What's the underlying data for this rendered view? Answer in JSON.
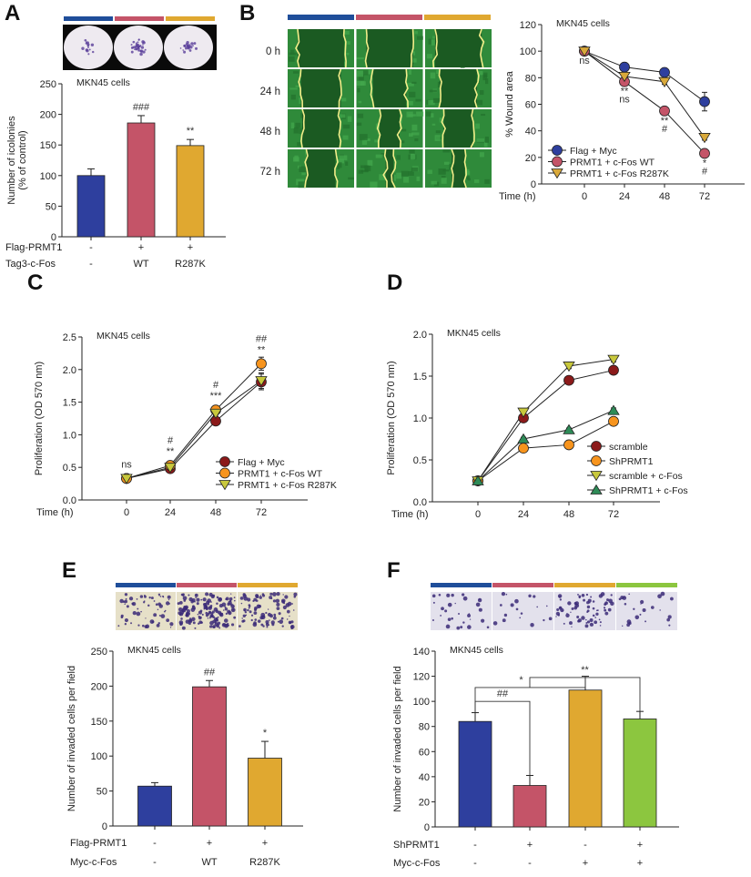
{
  "panel_labels": [
    "A",
    "B",
    "C",
    "D",
    "E",
    "F"
  ],
  "colors": {
    "blue": "#2e3f9e",
    "red": "#c45468",
    "gold": "#e0a830",
    "green": "#8cc63f"
  },
  "image_strips": {
    "A": {
      "bar_colors": [
        "#1f4e9a",
        "#c45468",
        "#e0a830"
      ],
      "image": "colony-plates"
    },
    "B": {
      "bar_colors": [
        "#1f4e9a",
        "#c45468",
        "#e0a830"
      ],
      "image": "wound-healing",
      "row_labels": [
        "0 h",
        "24 h",
        "48 h",
        "72 h"
      ]
    },
    "E": {
      "bar_colors": [
        "#1f4e9a",
        "#c45468",
        "#e0a830"
      ],
      "image": "invasion-stain"
    },
    "F": {
      "bar_colors": [
        "#1f4e9a",
        "#c45468",
        "#e0a830",
        "#8cc63f"
      ],
      "image": "invasion-stain"
    }
  },
  "chart_data": [
    {
      "panel": "A",
      "type": "bar",
      "subtitle": "MKN45 cells",
      "ylabel": [
        "Number of icolonies",
        "(% of control)"
      ],
      "ylim": [
        0,
        250
      ],
      "yticks": [
        "0",
        "50",
        "100",
        "150",
        "200",
        "250"
      ],
      "values": [
        100,
        186,
        149
      ],
      "errors": [
        11,
        12,
        10
      ],
      "colors": [
        "#2e3f9e",
        "#c45468",
        "#e0a830"
      ],
      "annotations": [
        "",
        "###",
        "**"
      ],
      "conditions": [
        {
          "label": "Flag-PRMT1",
          "values": [
            "-",
            "+",
            "+"
          ]
        },
        {
          "label": "Tag3-c-Fos",
          "values": [
            "-",
            "WT",
            "R287K"
          ]
        }
      ]
    },
    {
      "panel": "B",
      "type": "line",
      "subtitle": "MKN45 cells",
      "ylabel": [
        "% Wound area"
      ],
      "xlabel": "Time (h)",
      "x": [
        0,
        24,
        48,
        72
      ],
      "xticks": [
        "0",
        "24",
        "48",
        "72"
      ],
      "ylim": [
        0,
        120
      ],
      "yticks": [
        "0",
        "20",
        "40",
        "60",
        "80",
        "100",
        "120"
      ],
      "series": [
        {
          "name": "Flag + Myc",
          "values": [
            100,
            88,
            84,
            62
          ],
          "errors": [
            3,
            1.5,
            1.5,
            7
          ],
          "marker": "circle",
          "color": "#2e3f9e"
        },
        {
          "name": "PRMT1 + c-Fos WT",
          "values": [
            100,
            77,
            55,
            23
          ],
          "errors": [
            2,
            2,
            1.5,
            1.5
          ],
          "marker": "circle",
          "color": "#c45468"
        },
        {
          "name": "PRMT1 + c-Fos R287K",
          "values": [
            100,
            81,
            77,
            35
          ],
          "errors": [
            2,
            2,
            2,
            2
          ],
          "marker": "triangle-down",
          "color": "#d9a93a"
        }
      ],
      "annotations": [
        [
          "ns"
        ],
        [
          "**",
          "ns"
        ],
        [
          "**",
          "#"
        ],
        [
          "*",
          "#"
        ]
      ],
      "annotation_position": "below",
      "legend": "bottom-left"
    },
    {
      "panel": "C",
      "type": "line",
      "subtitle": "MKN45 cells",
      "ylabel": [
        "Proliferation (OD 570 nm)"
      ],
      "xlabel": "Time (h)",
      "x": [
        0,
        24,
        48,
        72
      ],
      "xticks": [
        "0",
        "24",
        "48",
        "72"
      ],
      "ylim": [
        0,
        2.5
      ],
      "yticks": [
        "0.0",
        "0.5",
        "1.0",
        "1.5",
        "2.0",
        "2.5"
      ],
      "series": [
        {
          "name": "Flag + Myc",
          "values": [
            0.33,
            0.48,
            1.21,
            1.81
          ],
          "errors": [
            0.02,
            0.02,
            0.03,
            0.12
          ],
          "marker": "circle",
          "color": "#8b1a1a"
        },
        {
          "name": "PRMT1 + c-Fos WT",
          "values": [
            0.33,
            0.53,
            1.38,
            2.09
          ],
          "errors": [
            0.02,
            0.02,
            0.03,
            0.1
          ],
          "marker": "circle",
          "color": "#f7941d"
        },
        {
          "name": "PRMT1 + c-Fos R287K",
          "values": [
            0.33,
            0.5,
            1.33,
            1.83
          ],
          "errors": [
            0.02,
            0.02,
            0.03,
            0.12
          ],
          "marker": "triangle-down",
          "color": "#c8c83c"
        }
      ],
      "annotations": [
        [
          "ns"
        ],
        [
          "**",
          "#"
        ],
        [
          "***",
          "#"
        ],
        [
          "**",
          "##"
        ]
      ],
      "annotation_position": "above",
      "legend": "bottom-right"
    },
    {
      "panel": "D",
      "type": "line",
      "subtitle": "MKN45 cells",
      "ylabel": [
        "Proliferation (OD 570 nm)"
      ],
      "xlabel": "Time (h)",
      "x": [
        0,
        24,
        48,
        72
      ],
      "xticks": [
        "0",
        "24",
        "48",
        "72"
      ],
      "ylim": [
        0,
        2.0
      ],
      "yticks": [
        "0.0",
        "0.5",
        "1.0",
        "1.5",
        "2.0"
      ],
      "series": [
        {
          "name": "scramble",
          "values": [
            0.25,
            1.0,
            1.45,
            1.57
          ],
          "errors": [
            0.02,
            0.03,
            0.04,
            0.04
          ],
          "marker": "circle",
          "color": "#8b1a1a"
        },
        {
          "name": "ShPRMT1",
          "values": [
            0.25,
            0.64,
            0.68,
            0.96
          ],
          "errors": [
            0.02,
            0.03,
            0.04,
            0.03
          ],
          "marker": "circle",
          "color": "#f7941d"
        },
        {
          "name": "scramble + c-Fos",
          "values": [
            0.25,
            1.07,
            1.62,
            1.7
          ],
          "errors": [
            0.02,
            0.03,
            0.03,
            0.03
          ],
          "marker": "triangle-down",
          "color": "#c8c83c"
        },
        {
          "name": "ShPRMT1 + c-Fos",
          "values": [
            0.25,
            0.75,
            0.86,
            1.09
          ],
          "errors": [
            0.02,
            0.02,
            0.02,
            0.03
          ],
          "marker": "triangle-up",
          "color": "#2e8b57"
        }
      ],
      "annotations": [],
      "legend": "bottom-right"
    },
    {
      "panel": "E",
      "type": "bar",
      "subtitle": "MKN45 cells",
      "ylabel": [
        "Number of invaded cells per field"
      ],
      "ylim": [
        0,
        250
      ],
      "yticks": [
        "0",
        "50",
        "100",
        "150",
        "200",
        "250"
      ],
      "values": [
        57,
        199,
        97
      ],
      "errors": [
        5,
        9,
        24
      ],
      "colors": [
        "#2e3f9e",
        "#c45468",
        "#e0a830"
      ],
      "annotations": [
        "",
        "##",
        "*"
      ],
      "conditions": [
        {
          "label": "Flag-PRMT1",
          "values": [
            "-",
            "+",
            "+"
          ]
        },
        {
          "label": "Myc-c-Fos",
          "values": [
            "-",
            "WT",
            "R287K"
          ]
        }
      ]
    },
    {
      "panel": "F",
      "type": "bar",
      "subtitle": "MKN45 cells",
      "ylabel": [
        "Number of invaded cells per field"
      ],
      "ylim": [
        0,
        140
      ],
      "yticks": [
        "0",
        "20",
        "40",
        "60",
        "80",
        "100",
        "120",
        "140"
      ],
      "values": [
        84,
        33,
        109,
        86
      ],
      "errors": [
        7,
        8,
        11,
        6
      ],
      "colors": [
        "#2e3f9e",
        "#c45468",
        "#e0a830",
        "#8cc63f"
      ],
      "annotations": [
        "",
        "",
        "",
        ""
      ],
      "brackets": [
        {
          "from": 0,
          "to": 1,
          "level": 100,
          "label": "##"
        },
        {
          "from": 0,
          "to": 2,
          "level": 111,
          "label": "*"
        },
        {
          "from": 1,
          "to": 3,
          "level": 119,
          "label": "**"
        }
      ],
      "conditions": [
        {
          "label": "ShPRMT1",
          "values": [
            "-",
            "+",
            "-",
            "+"
          ]
        },
        {
          "label": "Myc-c-Fos",
          "values": [
            "-",
            "-",
            "+",
            "+"
          ]
        }
      ]
    }
  ]
}
